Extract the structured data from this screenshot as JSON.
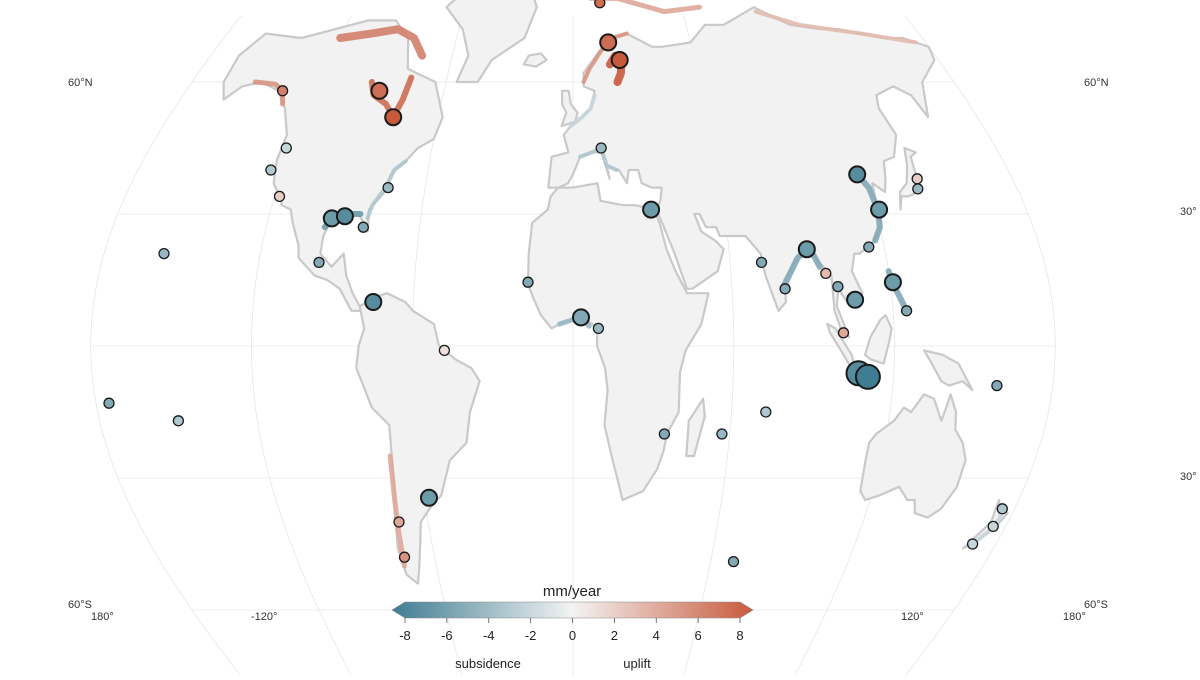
{
  "map": {
    "lat_labels": {
      "n60_left": "60°N",
      "n60_right": "60°N",
      "n30_right": "30°",
      "s30_right": "30°",
      "s60_left": "60°S",
      "s60_right": "60°S"
    },
    "lon_labels": [
      "180°",
      "-120°",
      "120°",
      "180°"
    ],
    "land_color": "#f2f2f2",
    "coast_color": "#c9c9c9",
    "grid_color": "#e6e6e6"
  },
  "colorbar": {
    "title": "mm/year",
    "ticks": [
      "-8",
      "-6",
      "-4",
      "-2",
      "0",
      "2",
      "4",
      "6",
      "8"
    ],
    "min": -8,
    "max": 8,
    "label_left": "subsidence",
    "label_right": "uplift",
    "color_low": "#3f7d92",
    "color_mid": "#f3f3f3",
    "color_high": "#c85a3c"
  },
  "stations": [
    {
      "lon": -125,
      "lat": 40,
      "rate": -3,
      "size": 1
    },
    {
      "lon": -122,
      "lat": 45,
      "rate": -2,
      "size": 1
    },
    {
      "lon": -118,
      "lat": 34,
      "rate": 2,
      "size": 1
    },
    {
      "lon": -95,
      "lat": 29,
      "rate": -6,
      "size": 2
    },
    {
      "lon": -90,
      "lat": 29.5,
      "rate": -7,
      "size": 2
    },
    {
      "lon": -82,
      "lat": 27,
      "rate": -5,
      "size": 1
    },
    {
      "lon": -75,
      "lat": 36,
      "rate": -4,
      "size": 1
    },
    {
      "lon": -97,
      "lat": 19,
      "rate": -5,
      "size": 1
    },
    {
      "lon": -75,
      "lat": 10,
      "rate": -7,
      "size": 2
    },
    {
      "lon": -48,
      "lat": -1,
      "rate": 1,
      "size": 1
    },
    {
      "lon": -58,
      "lat": -34.5,
      "rate": -6,
      "size": 2
    },
    {
      "lon": -157,
      "lat": 21,
      "rate": -4,
      "size": 1
    },
    {
      "lon": -17,
      "lat": 14.5,
      "rate": -5,
      "size": 1
    },
    {
      "lon": 3,
      "lat": 6.5,
      "rate": -5,
      "size": 2
    },
    {
      "lon": 9.5,
      "lat": 4,
      "rate": -4,
      "size": 1
    },
    {
      "lon": 31,
      "lat": 31,
      "rate": -6,
      "size": 2
    },
    {
      "lon": 12,
      "lat": 45,
      "rate": -4,
      "size": 1
    },
    {
      "lon": 35,
      "lat": -20,
      "rate": -5,
      "size": 1
    },
    {
      "lon": 57,
      "lat": -20,
      "rate": -4,
      "size": 1
    },
    {
      "lon": 72,
      "lat": 19,
      "rate": -5,
      "size": 1
    },
    {
      "lon": 80,
      "lat": 13,
      "rate": -5,
      "size": 1
    },
    {
      "lon": 90,
      "lat": 22,
      "rate": -6,
      "size": 2
    },
    {
      "lon": 96,
      "lat": 16.5,
      "rate": 3,
      "size": 1
    },
    {
      "lon": 100,
      "lat": 13.5,
      "rate": -5,
      "size": 1
    },
    {
      "lon": 106,
      "lat": 10.5,
      "rate": -6,
      "size": 2
    },
    {
      "lon": 101,
      "lat": 3,
      "rate": 4,
      "size": 1
    },
    {
      "lon": 106.8,
      "lat": -6.2,
      "rate": -7,
      "size": 3
    },
    {
      "lon": 110.4,
      "lat": -7,
      "rate": -8,
      "size": 3
    },
    {
      "lon": 114,
      "lat": 22.5,
      "rate": -5,
      "size": 1
    },
    {
      "lon": 121.5,
      "lat": 31,
      "rate": -6,
      "size": 2
    },
    {
      "lon": 117,
      "lat": 39,
      "rate": -7,
      "size": 2
    },
    {
      "lon": 121,
      "lat": 14.5,
      "rate": -6,
      "size": 2
    },
    {
      "lon": 125,
      "lat": 8,
      "rate": -5,
      "size": 1
    },
    {
      "lon": 139.7,
      "lat": 35.7,
      "rate": -4,
      "size": 1
    },
    {
      "lon": 141,
      "lat": 38,
      "rate": 2,
      "size": 1
    },
    {
      "lon": 174.8,
      "lat": -41,
      "rate": -2,
      "size": 1
    },
    {
      "lon": 175,
      "lat": -37,
      "rate": -3,
      "size": 1
    },
    {
      "lon": 170,
      "lat": -45,
      "rate": -2,
      "size": 1
    },
    {
      "lon": -150,
      "lat": -17,
      "rate": -3,
      "size": 1
    },
    {
      "lon": -175,
      "lat": -13,
      "rate": -5,
      "size": 1
    },
    {
      "lon": 159,
      "lat": -9,
      "rate": -5,
      "size": 1
    },
    {
      "lon": 70,
      "lat": -49,
      "rate": -5,
      "size": 1
    },
    {
      "lon": 73,
      "lat": -15,
      "rate": -3,
      "size": 1
    },
    {
      "lon": 18,
      "lat": 69,
      "rate": 7,
      "size": 2
    },
    {
      "lon": 23,
      "lat": 65,
      "rate": 8,
      "size": 2
    },
    {
      "lon": 15,
      "lat": 78,
      "rate": 7,
      "size": 1
    },
    {
      "lon": -90,
      "lat": 58,
      "rate": 7,
      "size": 2
    },
    {
      "lon": -80,
      "lat": 52,
      "rate": 8,
      "size": 2
    },
    {
      "lon": -135,
      "lat": 58,
      "rate": 6,
      "size": 1
    },
    {
      "lon": -72,
      "lat": -40,
      "rate": 4,
      "size": 1
    },
    {
      "lon": -73,
      "lat": -48,
      "rate": 5,
      "size": 1
    }
  ]
}
